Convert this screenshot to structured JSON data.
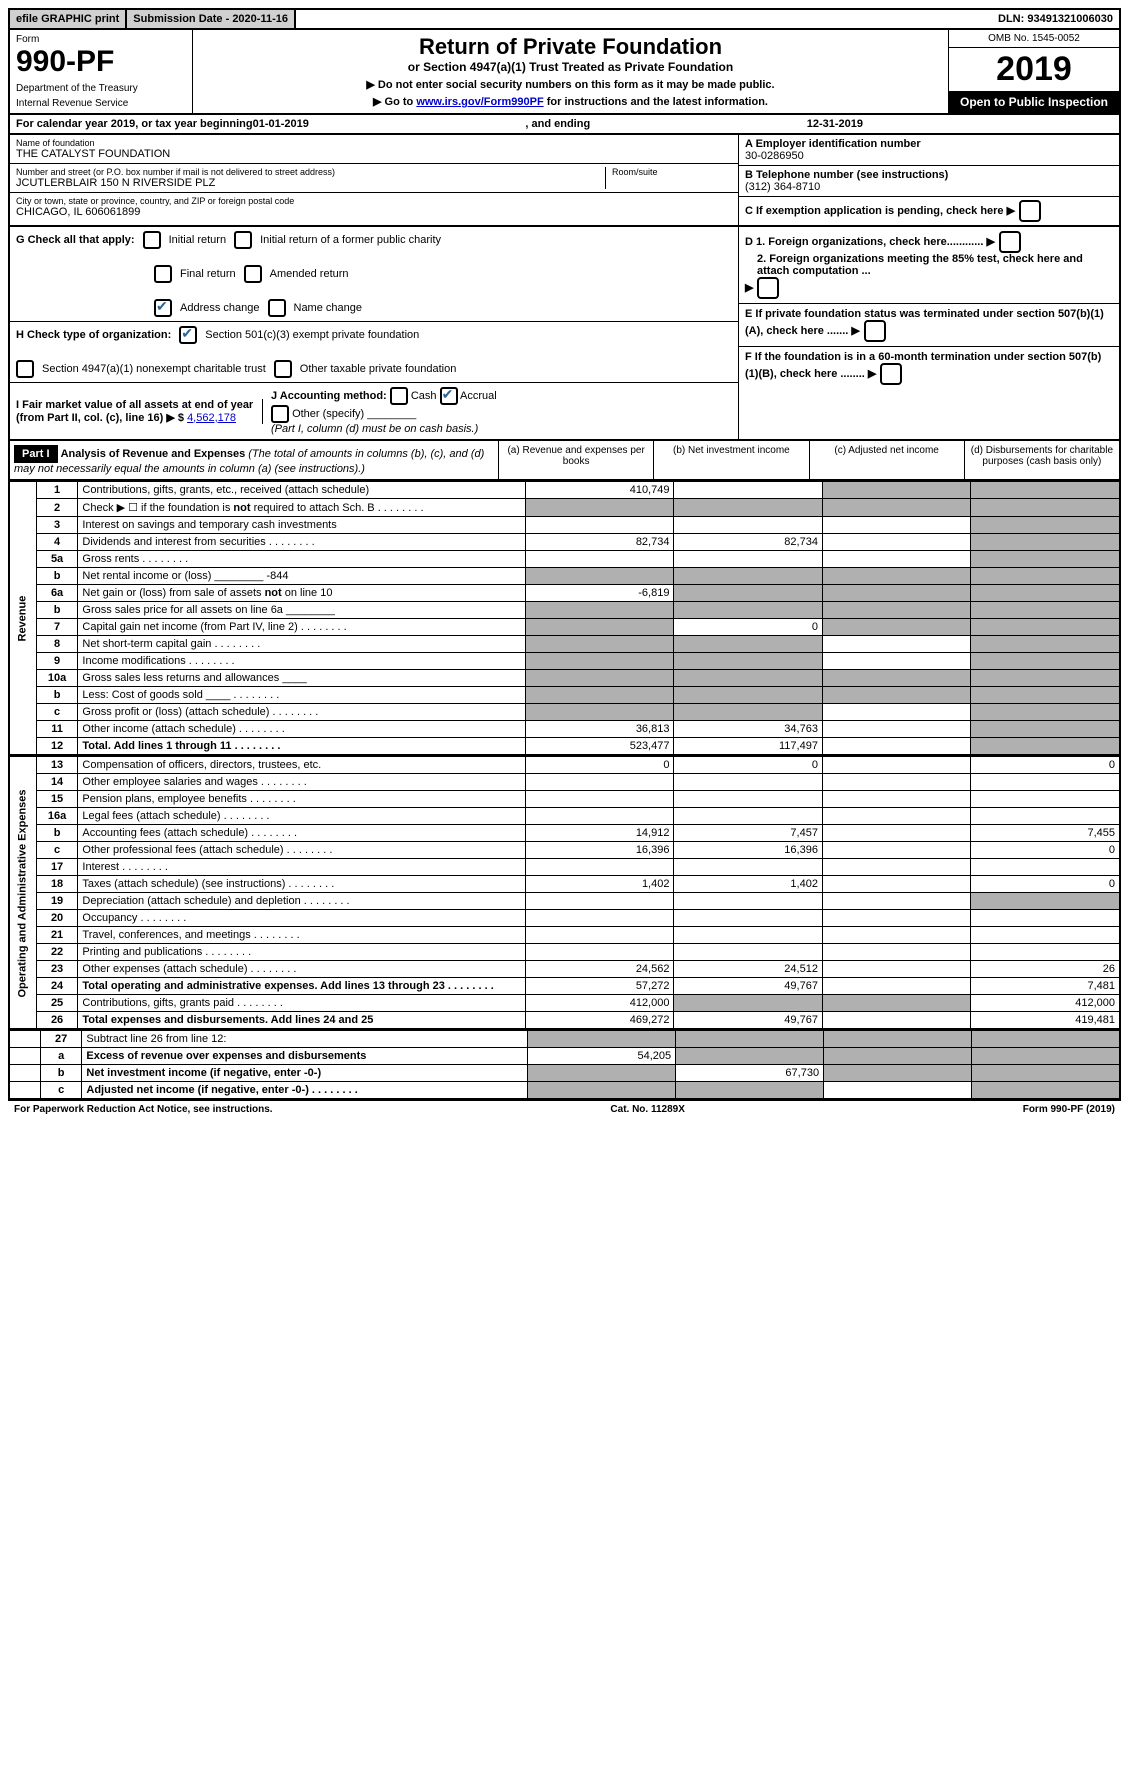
{
  "topbar": {
    "efile": "efile GRAPHIC print",
    "submission": "Submission Date - 2020-11-16",
    "dln": "DLN: 93491321006030"
  },
  "header": {
    "form_label": "Form",
    "form_number": "990-PF",
    "dept1": "Department of the Treasury",
    "dept2": "Internal Revenue Service",
    "title": "Return of Private Foundation",
    "subtitle": "or Section 4947(a)(1) Trust Treated as Private Foundation",
    "instr1": "▶ Do not enter social security numbers on this form as it may be made public.",
    "instr2_pre": "▶ Go to ",
    "instr2_link": "www.irs.gov/Form990PF",
    "instr2_post": " for instructions and the latest information.",
    "omb": "OMB No. 1545-0052",
    "year": "2019",
    "open": "Open to Public Inspection"
  },
  "calendar": {
    "text_pre": "For calendar year 2019, or tax year beginning ",
    "begin": "01-01-2019",
    "mid": " , and ending ",
    "end": "12-31-2019"
  },
  "ident": {
    "name_label": "Name of foundation",
    "name": "THE CATALYST FOUNDATION",
    "addr_label": "Number and street (or P.O. box number if mail is not delivered to street address)",
    "addr": "JCUTLERBLAIR 150 N RIVERSIDE PLZ",
    "room_label": "Room/suite",
    "city_label": "City or town, state or province, country, and ZIP or foreign postal code",
    "city": "CHICAGO, IL  606061899",
    "a_label": "A Employer identification number",
    "a_val": "30-0286950",
    "b_label": "B Telephone number (see instructions)",
    "b_val": "(312) 364-8710",
    "c_label": "C If exemption application is pending, check here"
  },
  "checks": {
    "g_label": "G Check all that apply:",
    "g_initial": "Initial return",
    "g_initial_former": "Initial return of a former public charity",
    "g_final": "Final return",
    "g_amended": "Amended return",
    "g_address": "Address change",
    "g_name": "Name change",
    "h_label": "H Check type of organization:",
    "h_501c3": "Section 501(c)(3) exempt private foundation",
    "h_4947": "Section 4947(a)(1) nonexempt charitable trust",
    "h_other": "Other taxable private foundation",
    "i_label": "I Fair market value of all assets at end of year (from Part II, col. (c), line 16) ▶ $",
    "i_val": "4,562,178",
    "j_label": "J Accounting method:",
    "j_cash": "Cash",
    "j_accrual": "Accrual",
    "j_other": "Other (specify)",
    "j_note": "(Part I, column (d) must be on cash basis.)",
    "d1": "D 1. Foreign organizations, check here............",
    "d2": "2. Foreign organizations meeting the 85% test, check here and attach computation ...",
    "e_label": "E  If private foundation status was terminated under section 507(b)(1)(A), check here .......",
    "f_label": "F  If the foundation is in a 60-month termination under section 507(b)(1)(B), check here ........"
  },
  "part1": {
    "label": "Part I",
    "title": "Analysis of Revenue and Expenses",
    "note": "(The total of amounts in columns (b), (c), and (d) may not necessarily equal the amounts in column (a) (see instructions).)",
    "col_a": "(a) Revenue and expenses per books",
    "col_b": "(b) Net investment income",
    "col_c": "(c) Adjusted net income",
    "col_d": "(d) Disbursements for charitable purposes (cash basis only)"
  },
  "sections": {
    "revenue": "Revenue",
    "expenses": "Operating and Administrative Expenses"
  },
  "rows": [
    {
      "n": "1",
      "d": "Contributions, gifts, grants, etc., received (attach schedule)",
      "a": "410,749",
      "b": "",
      "c": "s",
      "db": "s"
    },
    {
      "n": "2",
      "d": "Check ▶ ☐ if the foundation is not required to attach Sch. B",
      "a": "s",
      "b": "s",
      "c": "s",
      "db": "s",
      "dots": true
    },
    {
      "n": "3",
      "d": "Interest on savings and temporary cash investments",
      "a": "",
      "b": "",
      "c": "",
      "db": "s"
    },
    {
      "n": "4",
      "d": "Dividends and interest from securities",
      "a": "82,734",
      "b": "82,734",
      "c": "",
      "db": "s",
      "dots": true
    },
    {
      "n": "5a",
      "d": "Gross rents",
      "a": "",
      "b": "",
      "c": "",
      "db": "s",
      "dots": true
    },
    {
      "n": "b",
      "d": "Net rental income or (loss)  ________  -844",
      "a": "s",
      "b": "s",
      "c": "s",
      "db": "s"
    },
    {
      "n": "6a",
      "d": "Net gain or (loss) from sale of assets not on line 10",
      "a": "-6,819",
      "b": "s",
      "c": "s",
      "db": "s"
    },
    {
      "n": "b",
      "d": "Gross sales price for all assets on line 6a  ________",
      "a": "s",
      "b": "s",
      "c": "s",
      "db": "s"
    },
    {
      "n": "7",
      "d": "Capital gain net income (from Part IV, line 2)",
      "a": "s",
      "b": "0",
      "c": "s",
      "db": "s",
      "dots": true
    },
    {
      "n": "8",
      "d": "Net short-term capital gain",
      "a": "s",
      "b": "s",
      "c": "",
      "db": "s",
      "dots": true
    },
    {
      "n": "9",
      "d": "Income modifications",
      "a": "s",
      "b": "s",
      "c": "",
      "db": "s",
      "dots": true
    },
    {
      "n": "10a",
      "d": "Gross sales less returns and allowances  ____",
      "a": "s",
      "b": "s",
      "c": "s",
      "db": "s"
    },
    {
      "n": "b",
      "d": "Less: Cost of goods sold      ____",
      "a": "s",
      "b": "s",
      "c": "s",
      "db": "s",
      "dots": true
    },
    {
      "n": "c",
      "d": "Gross profit or (loss) (attach schedule)",
      "a": "s",
      "b": "s",
      "c": "",
      "db": "s",
      "dots": true
    },
    {
      "n": "11",
      "d": "Other income (attach schedule)",
      "a": "36,813",
      "b": "34,763",
      "c": "",
      "db": "s",
      "dots": true
    },
    {
      "n": "12",
      "d": "Total. Add lines 1 through 11",
      "a": "523,477",
      "b": "117,497",
      "c": "",
      "db": "s",
      "bold": true,
      "dots": true
    }
  ],
  "exprows": [
    {
      "n": "13",
      "d": "Compensation of officers, directors, trustees, etc.",
      "a": "0",
      "b": "0",
      "c": "",
      "db": "0"
    },
    {
      "n": "14",
      "d": "Other employee salaries and wages",
      "a": "",
      "b": "",
      "c": "",
      "db": "",
      "dots": true
    },
    {
      "n": "15",
      "d": "Pension plans, employee benefits",
      "a": "",
      "b": "",
      "c": "",
      "db": "",
      "dots": true
    },
    {
      "n": "16a",
      "d": "Legal fees (attach schedule)",
      "a": "",
      "b": "",
      "c": "",
      "db": "",
      "dots": true
    },
    {
      "n": "b",
      "d": "Accounting fees (attach schedule)",
      "a": "14,912",
      "b": "7,457",
      "c": "",
      "db": "7,455",
      "dots": true
    },
    {
      "n": "c",
      "d": "Other professional fees (attach schedule)",
      "a": "16,396",
      "b": "16,396",
      "c": "",
      "db": "0",
      "dots": true
    },
    {
      "n": "17",
      "d": "Interest",
      "a": "",
      "b": "",
      "c": "",
      "db": "",
      "dots": true
    },
    {
      "n": "18",
      "d": "Taxes (attach schedule) (see instructions)",
      "a": "1,402",
      "b": "1,402",
      "c": "",
      "db": "0",
      "dots": true
    },
    {
      "n": "19",
      "d": "Depreciation (attach schedule) and depletion",
      "a": "",
      "b": "",
      "c": "",
      "db": "s",
      "dots": true
    },
    {
      "n": "20",
      "d": "Occupancy",
      "a": "",
      "b": "",
      "c": "",
      "db": "",
      "dots": true
    },
    {
      "n": "21",
      "d": "Travel, conferences, and meetings",
      "a": "",
      "b": "",
      "c": "",
      "db": "",
      "dots": true
    },
    {
      "n": "22",
      "d": "Printing and publications",
      "a": "",
      "b": "",
      "c": "",
      "db": "",
      "dots": true
    },
    {
      "n": "23",
      "d": "Other expenses (attach schedule)",
      "a": "24,562",
      "b": "24,512",
      "c": "",
      "db": "26",
      "dots": true
    },
    {
      "n": "24",
      "d": "Total operating and administrative expenses. Add lines 13 through 23",
      "a": "57,272",
      "b": "49,767",
      "c": "",
      "db": "7,481",
      "bold": true,
      "dots": true
    },
    {
      "n": "25",
      "d": "Contributions, gifts, grants paid",
      "a": "412,000",
      "b": "s",
      "c": "s",
      "db": "412,000",
      "dots": true
    },
    {
      "n": "26",
      "d": "Total expenses and disbursements. Add lines 24 and 25",
      "a": "469,272",
      "b": "49,767",
      "c": "",
      "db": "419,481",
      "bold": true
    }
  ],
  "bottomrows": [
    {
      "n": "27",
      "d": "Subtract line 26 from line 12:",
      "a": "s",
      "b": "s",
      "c": "s",
      "db": "s"
    },
    {
      "n": "a",
      "d": "Excess of revenue over expenses and disbursements",
      "a": "54,205",
      "b": "s",
      "c": "s",
      "db": "s",
      "bold": true
    },
    {
      "n": "b",
      "d": "Net investment income (if negative, enter -0-)",
      "a": "s",
      "b": "67,730",
      "c": "s",
      "db": "s",
      "bold": true
    },
    {
      "n": "c",
      "d": "Adjusted net income (if negative, enter -0-)",
      "a": "s",
      "b": "s",
      "c": "",
      "db": "s",
      "bold": true,
      "dots": true
    }
  ],
  "footer": {
    "left": "For Paperwork Reduction Act Notice, see instructions.",
    "mid": "Cat. No. 11289X",
    "right": "Form 990-PF (2019)"
  }
}
